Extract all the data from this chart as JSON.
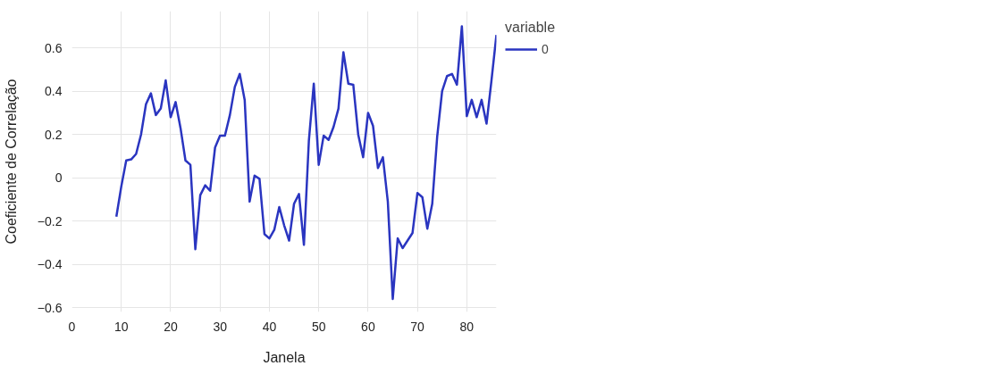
{
  "chart_data": {
    "type": "line",
    "xlabel": "Janela",
    "ylabel": "Coeficiente de Correlação",
    "legend_title": "variable",
    "legend": "top right",
    "grid": true,
    "line_style": "solid",
    "xlim": [
      0,
      86
    ],
    "xticks": [
      0,
      10,
      20,
      30,
      40,
      50,
      60,
      70,
      80
    ],
    "ylim": [
      -0.62,
      0.77
    ],
    "yticks": [
      {
        "value": -0.6,
        "label": "−0.6"
      },
      {
        "value": -0.4,
        "label": "−0.4"
      },
      {
        "value": -0.2,
        "label": "−0.2"
      },
      0,
      0.2,
      0.4,
      0.6
    ],
    "x": [
      9,
      10,
      11,
      12,
      13,
      14,
      15,
      16,
      17,
      18,
      19,
      20,
      21,
      22,
      23,
      24,
      25,
      26,
      27,
      28,
      29,
      30,
      31,
      32,
      33,
      34,
      35,
      36,
      37,
      38,
      39,
      40,
      41,
      42,
      43,
      44,
      45,
      46,
      47,
      48,
      49,
      50,
      51,
      52,
      53,
      54,
      55,
      56,
      57,
      58,
      59,
      60,
      61,
      62,
      63,
      64,
      65,
      66,
      67,
      68,
      69,
      70,
      71,
      72,
      73,
      74,
      75,
      76,
      77,
      78,
      79,
      80,
      81,
      82,
      83,
      84,
      85,
      86
    ],
    "series": [
      {
        "name": "0",
        "color": "#2a35c0",
        "values": [
          -0.18,
          -0.04,
          0.08,
          0.085,
          0.11,
          0.2,
          0.34,
          0.39,
          0.29,
          0.32,
          0.45,
          0.28,
          0.35,
          0.23,
          0.08,
          0.06,
          -0.33,
          -0.08,
          -0.035,
          -0.06,
          0.14,
          0.195,
          0.195,
          0.29,
          0.42,
          0.48,
          0.36,
          -0.11,
          0.01,
          -0.005,
          -0.26,
          -0.28,
          -0.24,
          -0.135,
          -0.22,
          -0.29,
          -0.12,
          -0.075,
          -0.31,
          0.17,
          0.435,
          0.06,
          0.195,
          0.175,
          0.235,
          0.32,
          0.58,
          0.435,
          0.43,
          0.2,
          0.095,
          0.3,
          0.24,
          0.045,
          0.095,
          -0.11,
          -0.56,
          -0.28,
          -0.325,
          -0.29,
          -0.255,
          -0.07,
          -0.09,
          -0.235,
          -0.12,
          0.19,
          0.4,
          0.47,
          0.48,
          0.43,
          0.7,
          0.285,
          0.36,
          0.28,
          0.36,
          0.25,
          0.45,
          0.66
        ]
      }
    ]
  }
}
